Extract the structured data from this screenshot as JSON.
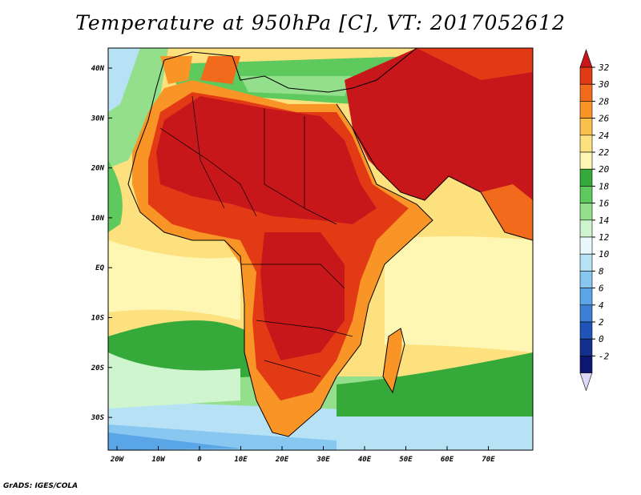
{
  "title": "Temperature at 950hPa [C], VT: 2017052612",
  "footer": "GrADS: IGES/COLA",
  "map": {
    "variable": "Temperature at 950hPa",
    "units": "C",
    "valid_time": "2017052612",
    "lon_ticks": [
      "20W",
      "10W",
      "0",
      "10E",
      "20E",
      "30E",
      "40E",
      "50E",
      "60E",
      "70E"
    ],
    "lat_ticks": [
      "40N",
      "30N",
      "20N",
      "10N",
      "EQ",
      "10S",
      "20S",
      "30S"
    ]
  },
  "colorbar": {
    "labels": [
      "32",
      "30",
      "28",
      "26",
      "24",
      "22",
      "20",
      "18",
      "16",
      "14",
      "12",
      "10",
      "8",
      "6",
      "4",
      "2",
      "0",
      "-2"
    ],
    "colors": [
      "#c8171b",
      "#e33a16",
      "#f26a1b",
      "#f99526",
      "#fbbf4b",
      "#fde17e",
      "#fef7b3",
      "#35a93a",
      "#5ec95d",
      "#93df8b",
      "#cff5cf",
      "#e8f8fb",
      "#b7e2f5",
      "#88c7ef",
      "#5aa5e6",
      "#3c7fd6",
      "#2054b8",
      "#13308f",
      "#0b1770",
      "#ddd8f5"
    ]
  }
}
